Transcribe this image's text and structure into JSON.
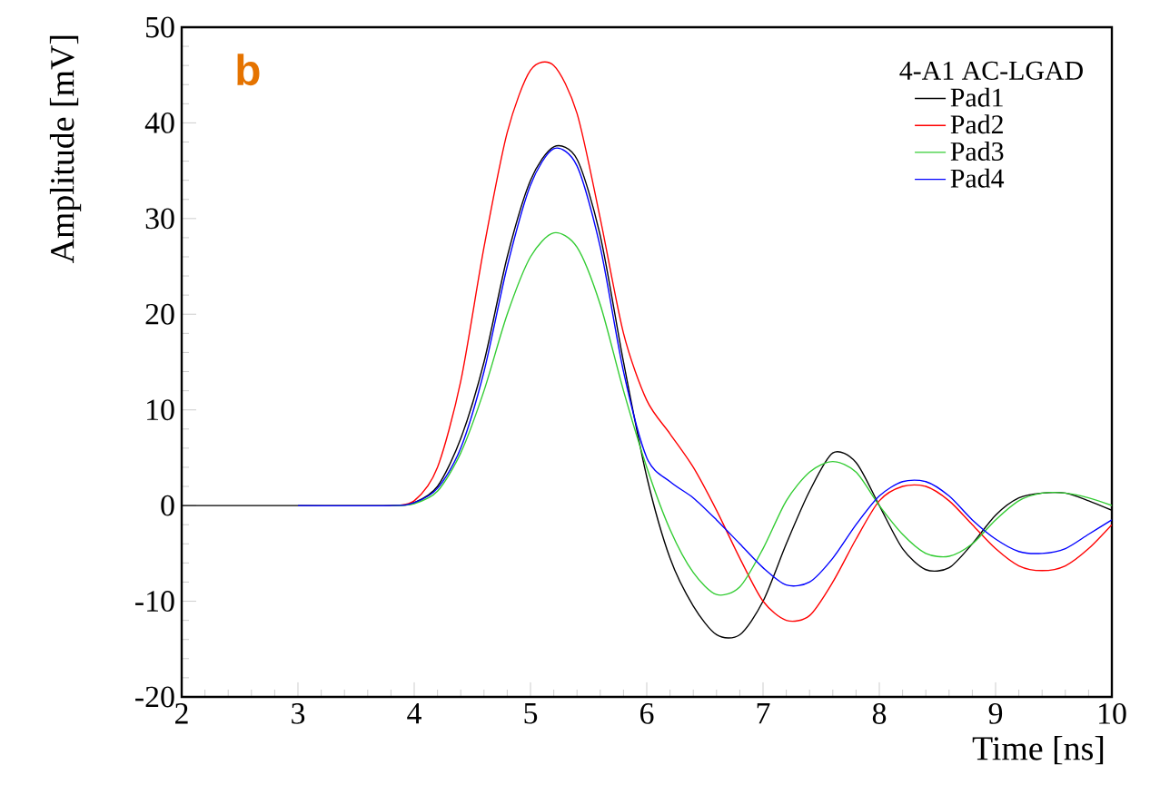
{
  "chart_data": {
    "type": "line",
    "xlabel": "Time [ns]",
    "ylabel": "Amplitude [mV]",
    "legend_title": "4-A1  AC-LGAD",
    "legend": "top right",
    "grid": false,
    "marker": "none",
    "line_style": "solid",
    "annotations": [
      "b"
    ],
    "xlim": [
      2,
      10
    ],
    "ylim": [
      -20,
      50
    ],
    "xticks": [
      2,
      3,
      4,
      5,
      6,
      7,
      8,
      9,
      10
    ],
    "yticks": [
      -20,
      -10,
      0,
      10,
      20,
      30,
      40,
      50
    ],
    "x": [
      2,
      3,
      3.8,
      4.0,
      4.2,
      4.4,
      4.6,
      4.8,
      5.0,
      5.2,
      5.4,
      5.6,
      5.8,
      6.0,
      6.2,
      6.4,
      6.6,
      6.8,
      7.0,
      7.2,
      7.4,
      7.6,
      7.8,
      8.0,
      8.2,
      8.4,
      8.6,
      8.8,
      9.0,
      9.2,
      9.4,
      9.6,
      9.8,
      10.0
    ],
    "series": [
      {
        "name": "Pad1",
        "color": "#000000",
        "values": [
          0,
          0,
          0,
          0.3,
          2,
          7,
          15,
          26,
          34,
          37.5,
          36.2,
          28.2,
          15,
          3,
          -5.5,
          -10.5,
          -13.5,
          -13.5,
          -10,
          -4,
          1.5,
          5.5,
          4.5,
          0,
          -4.5,
          -6.7,
          -6.5,
          -4,
          -1,
          0.8,
          1.3,
          1.3,
          0.5,
          -0.5
        ]
      },
      {
        "name": "Pad2",
        "color": "#ff0000",
        "values": [
          null,
          null,
          0,
          0.5,
          4,
          13,
          27,
          39,
          45.5,
          46,
          41,
          30,
          18,
          11,
          7.5,
          4,
          -0.5,
          -5.5,
          -10,
          -12,
          -11.5,
          -8,
          -3.5,
          0.5,
          2,
          2,
          0.5,
          -2,
          -4.5,
          -6.3,
          -6.8,
          -6.3,
          -4.5,
          -2
        ]
      },
      {
        "name": "Pad3",
        "color": "#33cc33",
        "values": [
          null,
          null,
          0,
          0.2,
          1.5,
          5.5,
          12,
          20,
          26,
          28.5,
          27,
          21,
          12,
          4,
          -2.5,
          -7,
          -9.3,
          -8.5,
          -4.5,
          0.5,
          3.5,
          4.6,
          3.5,
          0,
          -3,
          -5,
          -5.3,
          -4,
          -1.5,
          0.5,
          1.3,
          1.3,
          0.8,
          0
        ]
      },
      {
        "name": "Pad4",
        "color": "#0000ff",
        "values": [
          null,
          0,
          0,
          0.3,
          1.8,
          6,
          14,
          25,
          33.5,
          37.3,
          35.5,
          27,
          14,
          5,
          2.5,
          0.8,
          -1.5,
          -4,
          -6.5,
          -8.3,
          -8,
          -5.5,
          -2,
          1,
          2.5,
          2.5,
          1,
          -1.5,
          -3.5,
          -4.8,
          -5,
          -4.5,
          -3,
          -1.5
        ]
      }
    ]
  }
}
